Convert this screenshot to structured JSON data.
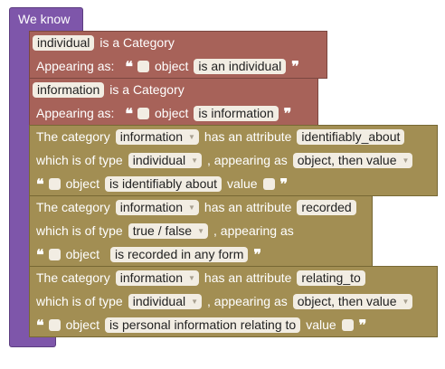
{
  "root": {
    "title": "We know"
  },
  "blocks": [
    {
      "type": "category",
      "name": "individual",
      "is_a_category": "is a Category",
      "appearing_as": "Appearing as:",
      "open_quote": "❝",
      "close_quote": "❞",
      "object_word": "object",
      "phrase": "is an individual"
    },
    {
      "type": "category",
      "name": "information",
      "is_a_category": "is a Category",
      "appearing_as": "Appearing as:",
      "open_quote": "❝",
      "close_quote": "❞",
      "object_word": "object",
      "phrase": "is information"
    },
    {
      "type": "attribute",
      "the_category": "The category",
      "category": "information",
      "has_an_attribute": "has an attribute",
      "attribute": "identifiably_about",
      "which_is_of_type": "which is of type",
      "value_type": "individual",
      "appearing_as": ", appearing as",
      "appearance": "object, then value",
      "open_quote": "❝",
      "close_quote": "❞",
      "object_word": "object",
      "phrase": "is identifiably about",
      "value_word": "value"
    },
    {
      "type": "attribute",
      "the_category": "The category",
      "category": "information",
      "has_an_attribute": "has an attribute",
      "attribute": "recorded",
      "which_is_of_type": "which is of type",
      "value_type": "true / false",
      "appearing_as": ", appearing as",
      "open_quote": "❝",
      "close_quote": "❞",
      "object_word": "object",
      "phrase": "is recorded in any form"
    },
    {
      "type": "attribute",
      "the_category": "The category",
      "category": "information",
      "has_an_attribute": "has an attribute",
      "attribute": "relating_to",
      "which_is_of_type": "which is of type",
      "value_type": "individual",
      "appearing_as": ", appearing as",
      "appearance": "object, then value",
      "open_quote": "❝",
      "close_quote": "❞",
      "object_word": "object",
      "phrase": "is personal information relating to",
      "value_word": "value"
    }
  ],
  "icons": {
    "dropdown_arrow": "▼",
    "checkbox": "empty-square"
  },
  "colors": {
    "container": "#7e56aa",
    "category_block": "#a76259",
    "attribute_block": "#a28e53",
    "field_bg": "#f2ede3"
  }
}
